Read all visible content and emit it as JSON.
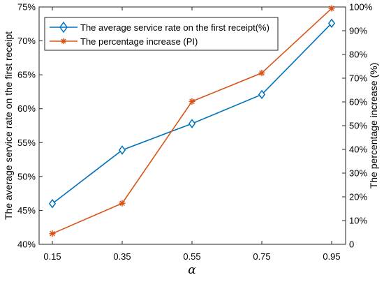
{
  "chart_data": {
    "type": "line",
    "title": "",
    "xlabel": "α",
    "ylabel_left": "The average service rate on the first receipt",
    "ylabel_right": "The percentage increase (%)",
    "x": [
      0.15,
      0.35,
      0.55,
      0.75,
      0.95
    ],
    "x_tick_labels": [
      "0.15",
      "0.35",
      "0.55",
      "0.75",
      "0.95"
    ],
    "y_left_lim": [
      40,
      75
    ],
    "y_left_ticks": [
      40,
      45,
      50,
      55,
      60,
      65,
      70,
      75
    ],
    "y_left_tick_labels": [
      "40%",
      "45%",
      "50%",
      "55%",
      "60%",
      "65%",
      "70%",
      "75%"
    ],
    "y_right_lim": [
      0,
      100
    ],
    "y_right_ticks": [
      0,
      10,
      20,
      30,
      40,
      50,
      60,
      70,
      80,
      90,
      100
    ],
    "y_right_tick_labels": [
      "0",
      "10%",
      "20%",
      "30%",
      "40%",
      "50%",
      "60%",
      "70%",
      "80%",
      "90%",
      "100%"
    ],
    "grid": false,
    "legend_position": "top-left",
    "series": [
      {
        "name": "The average service rate on the first receipt(%)",
        "axis": "left",
        "color": "#0072BD",
        "marker": "diamond",
        "values": [
          46.0,
          53.9,
          57.8,
          62.1,
          72.6
        ]
      },
      {
        "name": "The percentage increase (PI)",
        "axis": "right",
        "color": "#D95319",
        "marker": "asterisk",
        "values": [
          4.5,
          17.3,
          60.2,
          72.2,
          99.4
        ]
      }
    ]
  }
}
